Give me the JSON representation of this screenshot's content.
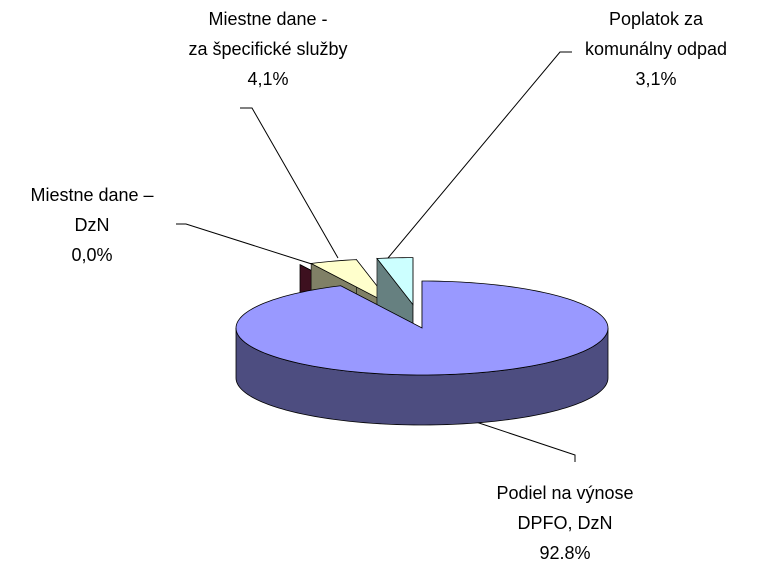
{
  "chart_data": {
    "type": "pie3d",
    "categories": [
      [
        "Podiel na výnose",
        "DPFO, DzN"
      ],
      [
        "Miestne dane –",
        "DzN"
      ],
      [
        "Miestne dane -",
        "za špecifické služby"
      ],
      [
        "Poplatok za",
        "komunálny odpad"
      ]
    ],
    "values": [
      92.8,
      0.0,
      4.1,
      3.1
    ],
    "value_labels": [
      "92.8%",
      "0,0%",
      "4,1%",
      "3,1%"
    ],
    "colors": [
      "#9999ff",
      "#7a1f3d",
      "#ffffcc",
      "#ccffff"
    ],
    "exploded": [
      false,
      true,
      true,
      true
    ]
  }
}
